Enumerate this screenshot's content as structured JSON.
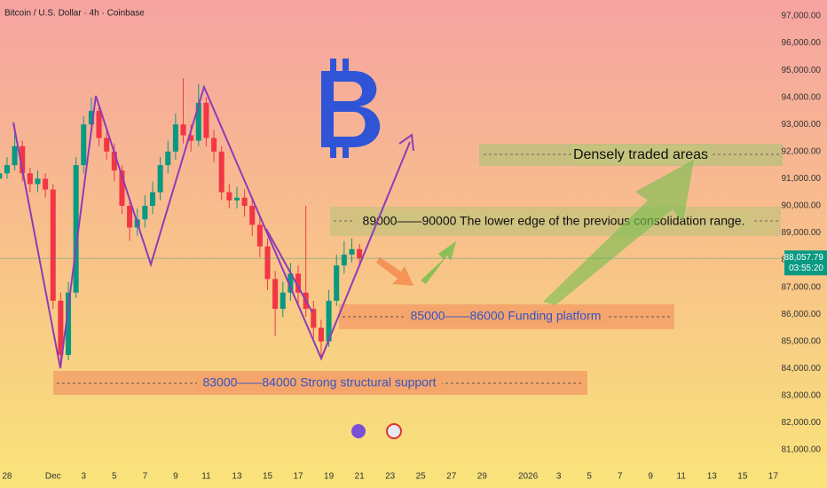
{
  "chart_data": {
    "type": "candlestick",
    "title": "Bitcoin / U.S. Dollar · 4h · Coinbase",
    "x": [
      -0.5,
      0,
      0.5,
      1,
      1.5,
      2,
      2.5,
      3,
      3.5,
      4,
      4.5,
      5,
      5.5,
      6,
      6.5,
      7,
      7.5,
      8,
      8.5,
      9,
      9.5,
      10,
      10.5,
      11,
      11.5,
      12,
      12.5,
      13,
      13.5,
      14,
      14.5,
      15,
      15.5,
      16,
      16.5,
      17,
      17.5,
      18,
      18.5,
      19,
      19.5,
      20,
      20.5,
      21,
      21.5,
      22,
      22.5,
      23
    ],
    "open": [
      91000,
      91200,
      91500,
      92200,
      91200,
      90800,
      91000,
      90600,
      86500,
      84500,
      86800,
      91500,
      93000,
      93500,
      92500,
      92000,
      91300,
      90000,
      89200,
      89500,
      90000,
      90500,
      91500,
      92000,
      93000,
      92600,
      92400,
      93800,
      92500,
      92000,
      90500,
      90200,
      90300,
      90000,
      89300,
      88500,
      87300,
      86200,
      86800,
      87500,
      86800,
      86200,
      85500,
      85000,
      86500,
      87800,
      88200,
      88400
    ],
    "high": [
      91500,
      91800,
      93000,
      92400,
      91400,
      91300,
      91200,
      90800,
      86800,
      87200,
      91800,
      93300,
      94000,
      93700,
      92800,
      92300,
      91500,
      90300,
      89900,
      90400,
      90900,
      91800,
      92400,
      93400,
      94700,
      93000,
      94500,
      94000,
      92800,
      92200,
      90800,
      90700,
      90600,
      90300,
      89600,
      88800,
      87600,
      87200,
      87900,
      87800,
      90000,
      86500,
      85800,
      86900,
      88200,
      88700,
      88800,
      88600
    ],
    "low": [
      90700,
      91000,
      91300,
      90900,
      90500,
      90500,
      90300,
      86200,
      84000,
      84300,
      86600,
      91200,
      92700,
      92200,
      91700,
      90900,
      89700,
      88700,
      88900,
      89200,
      89700,
      90200,
      91200,
      91700,
      92300,
      92000,
      92200,
      92200,
      91600,
      90200,
      89900,
      89900,
      89600,
      88900,
      88100,
      86900,
      85200,
      85900,
      86500,
      86400,
      85900,
      85100,
      84400,
      84800,
      86300,
      87500,
      87900,
      87800
    ],
    "close": [
      91200,
      91500,
      92200,
      91200,
      90800,
      91000,
      90600,
      86500,
      84500,
      86800,
      91500,
      93000,
      93500,
      92500,
      92000,
      91300,
      90000,
      89200,
      89500,
      90000,
      90500,
      91500,
      92000,
      93000,
      92600,
      92400,
      93800,
      92500,
      92000,
      90500,
      90200,
      90300,
      90000,
      89300,
      88500,
      87300,
      86200,
      86800,
      87500,
      86800,
      86200,
      85500,
      85000,
      86500,
      87800,
      88200,
      88400,
      88057.79
    ],
    "up_color": "#089981",
    "down_color": "#f23645",
    "xlim": [
      -0.46,
      50.5
    ],
    "ylim": [
      80444,
      97589
    ],
    "xticks": [
      {
        "value": 0,
        "label": "28"
      },
      {
        "value": 3,
        "label": "Dec"
      },
      {
        "value": 5,
        "label": "3"
      },
      {
        "value": 7,
        "label": "5"
      },
      {
        "value": 9,
        "label": "7"
      },
      {
        "value": 11,
        "label": "9"
      },
      {
        "value": 13,
        "label": "11"
      },
      {
        "value": 15,
        "label": "13"
      },
      {
        "value": 17,
        "label": "15"
      },
      {
        "value": 19,
        "label": "17"
      },
      {
        "value": 21,
        "label": "19"
      },
      {
        "value": 23,
        "label": "21"
      },
      {
        "value": 25,
        "label": "23"
      },
      {
        "value": 27,
        "label": "25"
      },
      {
        "value": 29,
        "label": "27"
      },
      {
        "value": 31,
        "label": "29"
      },
      {
        "value": 34,
        "label": "2026"
      },
      {
        "value": 36,
        "label": "3"
      },
      {
        "value": 38,
        "label": "5"
      },
      {
        "value": 40,
        "label": "7"
      },
      {
        "value": 42,
        "label": "9"
      },
      {
        "value": 44,
        "label": "11"
      },
      {
        "value": 46,
        "label": "13"
      },
      {
        "value": 48,
        "label": "15"
      },
      {
        "value": 50,
        "label": "17"
      }
    ],
    "yticks": [
      {
        "value": 97000,
        "label": "97,000.00"
      },
      {
        "value": 96000,
        "label": "96,000.00"
      },
      {
        "value": 95000,
        "label": "95,000.00"
      },
      {
        "value": 94000,
        "label": "94,000.00"
      },
      {
        "value": 93000,
        "label": "93,000.00"
      },
      {
        "value": 92000,
        "label": "92,000.00"
      },
      {
        "value": 91000,
        "label": "91,000.00"
      },
      {
        "value": 90000,
        "label": "90,000.00"
      },
      {
        "value": 89000,
        "label": "89,000.00"
      },
      {
        "value": 88000,
        "label": "88,000.00"
      },
      {
        "value": 87000,
        "label": "87,000.00"
      },
      {
        "value": 86000,
        "label": "86,000.00"
      },
      {
        "value": 85000,
        "label": "85,000.00"
      },
      {
        "value": 84000,
        "label": "84,000.00"
      },
      {
        "value": 83000,
        "label": "83,000.00"
      },
      {
        "value": 82000,
        "label": "82,000.00"
      },
      {
        "value": 81000,
        "label": "81,000.00"
      }
    ],
    "grid": false,
    "last_price": {
      "value": 88057.79,
      "label": "88,057.79"
    },
    "countdown": "03:55:20",
    "annotations": [
      "Densely traded areas",
      "89000——90000  The lower edge of the previous consolidation range.",
      "85000——86000  Funding platform",
      "83000——84000  Strong structural support"
    ]
  }
}
